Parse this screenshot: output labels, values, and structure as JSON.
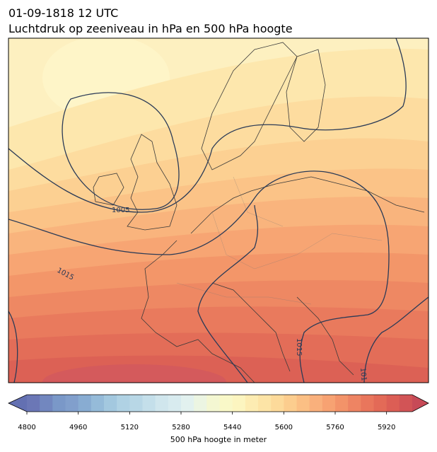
{
  "header": {
    "title_line1": "01-09-1818 12 UTC",
    "title_line2": "Luchtdruk op zeeniveau in hPa en 500 hPa hoogte"
  },
  "map": {
    "contour_labels": [
      "1005",
      "1015",
      "1015",
      "101"
    ]
  },
  "colorbar": {
    "clim": [
      4800,
      6000
    ],
    "ticks": [
      4800,
      4960,
      5120,
      5280,
      5440,
      5600,
      5760,
      5920
    ],
    "label": "500 hPa hoogte in meter",
    "colors": [
      "#6b77b6",
      "#7287bf",
      "#7a98c8",
      "#819fcc",
      "#88acd2",
      "#95bbd9",
      "#a3c8df",
      "#b0d2e4",
      "#b8d7e6",
      "#c4dfea",
      "#d0e6ed",
      "#d8ebef",
      "#e2f1ef",
      "#ecf5e2",
      "#f4f7d2",
      "#f9f8c8",
      "#fcf5c0",
      "#fdecb2",
      "#fde4a6",
      "#fdda9a",
      "#fccd8e",
      "#fbbf84",
      "#f9b07c",
      "#f7a272",
      "#f39369",
      "#ee8463",
      "#e9765c",
      "#e36a57",
      "#dc5e55",
      "#d25456"
    ],
    "under_color": "#6370b2",
    "over_color": "#c74a57"
  }
}
